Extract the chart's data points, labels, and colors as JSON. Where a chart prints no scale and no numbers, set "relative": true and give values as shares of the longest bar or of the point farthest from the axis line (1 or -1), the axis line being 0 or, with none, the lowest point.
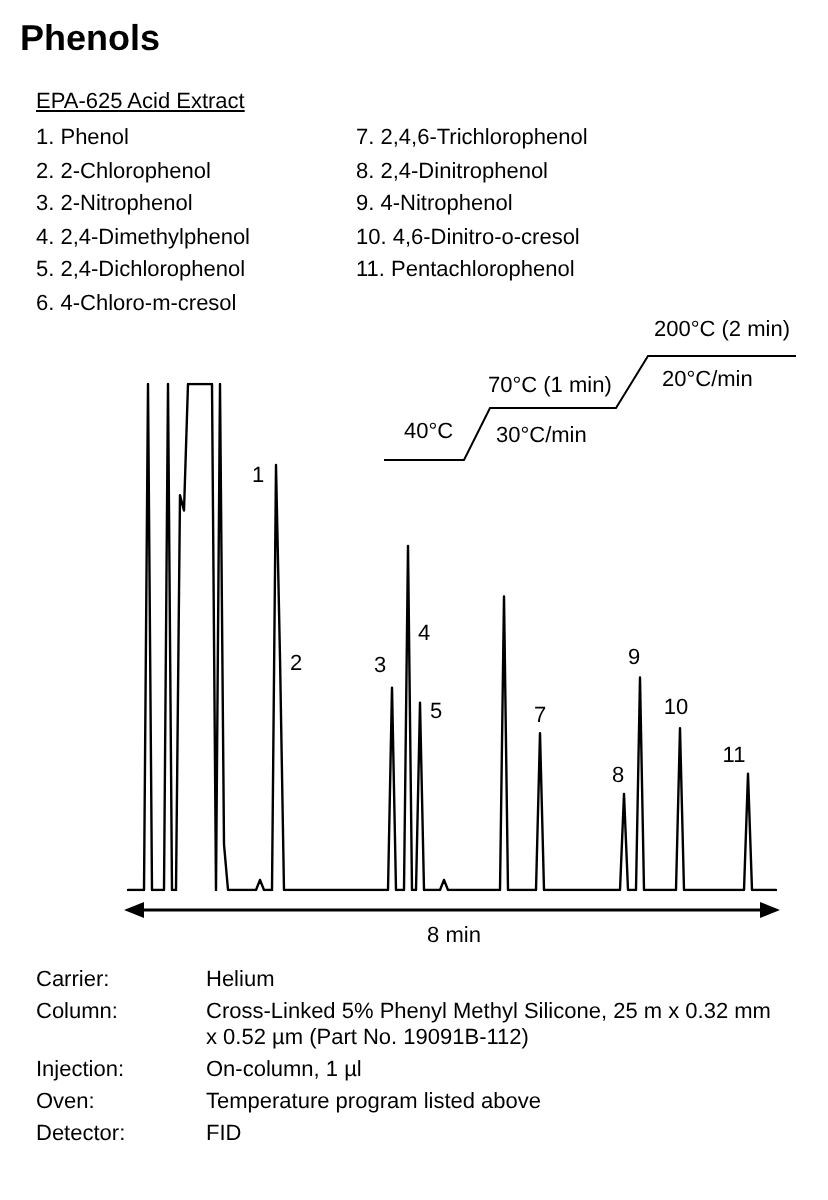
{
  "chart_data": {
    "type": "line",
    "title": "Phenols",
    "subtitle": "EPA-625 Acid Extract",
    "relative": true,
    "tick_labels": false,
    "line_style": "solid",
    "color": "#000000",
    "categories": [
      null,
      null,
      null,
      null,
      null,
      null,
      null,
      null,
      null,
      null,
      null,
      null,
      null,
      null,
      null,
      null,
      null,
      null,
      null,
      null,
      null,
      null,
      null,
      null,
      null,
      null,
      null,
      null,
      null,
      null,
      null,
      null,
      null,
      null,
      null,
      null,
      null,
      null,
      null,
      null,
      null,
      null,
      null,
      null,
      null,
      null,
      null,
      null,
      null,
      null,
      null,
      null,
      null,
      null,
      null,
      null,
      null,
      null,
      null,
      null,
      null,
      null,
      null,
      null,
      null,
      null,
      null,
      null,
      null,
      null,
      null,
      null,
      null,
      null,
      null,
      null,
      null,
      null,
      null,
      null,
      null,
      null,
      null,
      null,
      null,
      null,
      null,
      null,
      null,
      null,
      null,
      null,
      null,
      null,
      null,
      null,
      null,
      null,
      null,
      null,
      null,
      null,
      null,
      null,
      null,
      null,
      null,
      null,
      null,
      null,
      null,
      null,
      null,
      null,
      null,
      null,
      null,
      null,
      null,
      null,
      null,
      null,
      null,
      null,
      null,
      null,
      null,
      null,
      null,
      null,
      null,
      null,
      null,
      null,
      null,
      null,
      null,
      null,
      null,
      null,
      null,
      null,
      null,
      null,
      null,
      null,
      null,
      null,
      null,
      null,
      null,
      null,
      null,
      null,
      null,
      null,
      null,
      null,
      null,
      null,
      null,
      null,
      null
    ],
    "values": [
      0,
      0,
      0,
      0,
      0,
      1,
      0,
      0,
      0,
      0,
      1,
      0,
      0,
      0.78,
      0.75,
      1,
      1,
      1,
      1,
      1,
      1,
      1,
      0,
      1,
      0.09,
      0,
      0,
      0,
      0,
      0,
      0,
      0,
      0,
      0.02,
      0,
      0,
      0,
      0.84,
      0.46,
      0,
      0,
      0,
      0,
      0,
      0,
      0,
      0,
      0,
      0,
      0,
      0,
      0,
      0,
      0,
      0,
      0,
      0,
      0,
      0,
      0,
      0,
      0,
      0,
      0,
      0,
      0,
      0.4,
      0,
      0,
      0,
      0.68,
      0,
      0,
      0.37,
      0,
      0,
      0,
      0,
      0,
      0.02,
      0,
      0,
      0,
      0,
      0,
      0,
      0,
      0,
      0,
      0,
      0,
      0,
      0,
      0,
      0.58,
      0,
      0,
      0,
      0,
      0,
      0,
      0,
      0,
      0.31,
      0,
      0,
      0,
      0,
      0,
      0,
      0,
      0,
      0,
      0,
      0,
      0,
      0,
      0,
      0,
      0,
      0,
      0,
      0,
      0,
      0.19,
      0,
      0,
      0,
      0.42,
      0,
      0,
      0,
      0,
      0,
      0,
      0,
      0,
      0,
      0.32,
      0,
      0,
      0,
      0,
      0,
      0,
      0,
      0,
      0,
      0,
      0,
      0,
      0,
      0,
      0,
      0,
      0.23,
      0,
      0,
      0,
      0,
      0,
      0,
      0
    ],
    "annotations": [
      "1. Phenol",
      "2. 2-Chlorophenol",
      "3. 2-Nitrophenol",
      "4. 2,4-Dimethylphenol",
      "5. 2,4-Dichlorophenol",
      "6. 4-Chloro-m-cresol",
      "7. 2,4,6-Trichlorophenol",
      "8. 2,4-Dinitrophenol",
      "9. 4-Nitrophenol",
      "10. 4,6-Dinitro-o-cresol",
      "11. Pentachlorophenol",
      "40°C",
      "30°C/min",
      "70°C (1 min)",
      "20°C/min",
      "200°C (2 min)",
      "8 min",
      "Carrier:",
      "Helium",
      "Column:",
      "Cross-Linked 5% Phenyl Methyl Silicone, 25 m x 0.32 mm x 0.52 µm (Part No. 19091B-112)",
      "Injection:",
      "On-column, 1 µl",
      "Oven:",
      "Temperature program listed above",
      "Detector:",
      "FID",
      "1",
      "2",
      "3",
      "4",
      "5",
      "7",
      "8",
      "9",
      "10",
      "11"
    ]
  }
}
